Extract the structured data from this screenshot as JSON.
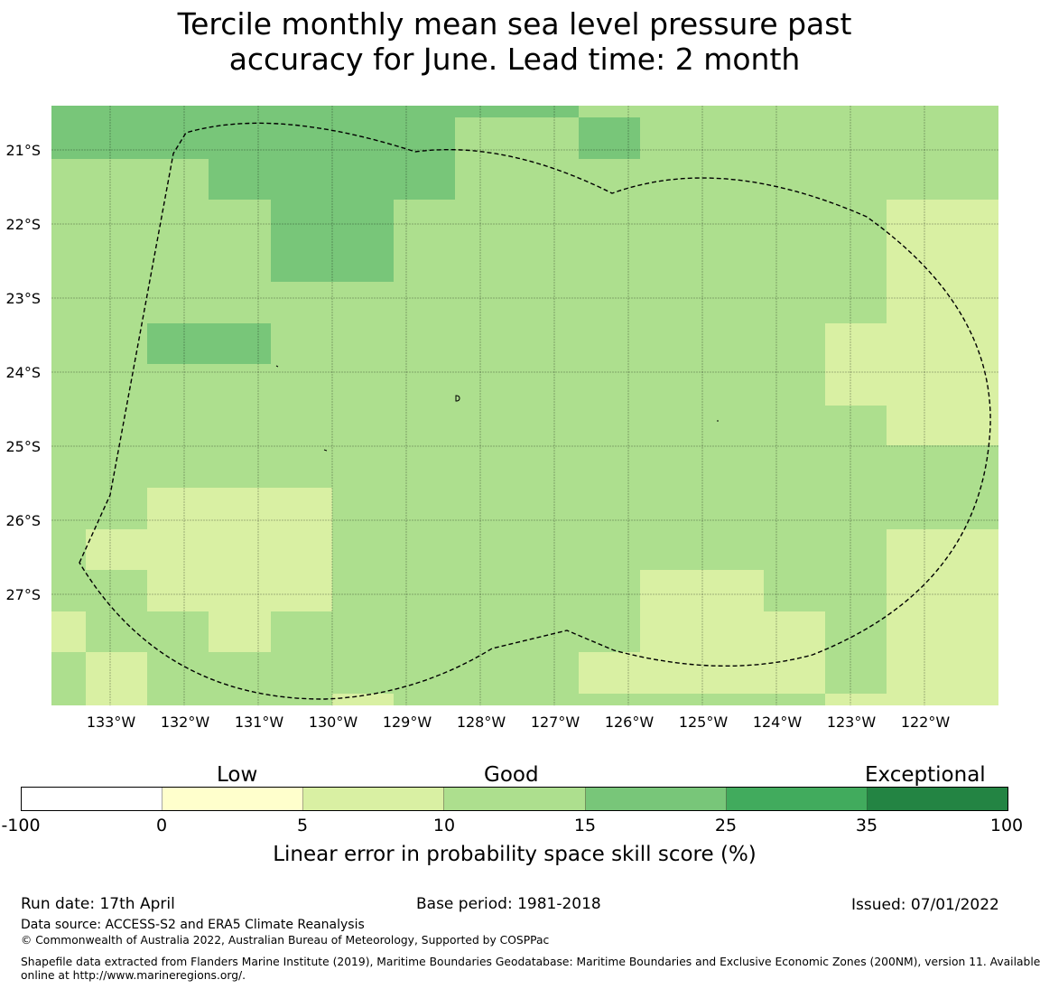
{
  "title": {
    "line1": "Tercile monthly mean sea level pressure past",
    "line2": "accuracy for June. Lead time: 2 month"
  },
  "map": {
    "lat_labels": [
      "21°S",
      "22°S",
      "23°S",
      "24°S",
      "25°S",
      "26°S",
      "27°S"
    ],
    "lon_labels": [
      "133°W",
      "132°W",
      "131°W",
      "130°W",
      "129°W",
      "128°W",
      "127°W",
      "126°W",
      "125°W",
      "124°W",
      "123°W",
      "122°W"
    ],
    "grid": true,
    "boundary_style": "dashed",
    "colors": {
      "c10_15": "#addf8e",
      "c15_25": "#78c679",
      "c5_10": "#d9f0a3"
    }
  },
  "colorbar": {
    "category_labels": [
      "Low",
      "Good",
      "Exceptional"
    ],
    "tick_labels": [
      "-100",
      "0",
      "5",
      "10",
      "15",
      "25",
      "35",
      "100"
    ],
    "colors": [
      "#ffffff",
      "#ffffcc",
      "#d9f0a3",
      "#addf8e",
      "#78c679",
      "#41ab5d",
      "#238443"
    ],
    "label": "Linear error in probability space skill score (%)"
  },
  "footer": {
    "run_date": "Run date: 17th April",
    "base_period": "Base period: 1981-2018",
    "issued": "Issued: 07/01/2022",
    "data_source": "Data source: ACCESS-S2 and ERA5 Climate Reanalysis",
    "copyright": "© Commonwealth of Australia 2022, Australian Bureau of Meteorology, Supported by COSPPac",
    "shapefile_line1": "Shapefile data extracted from Flanders Marine Institute (2019), Maritime Boundaries Geodatabase: Maritime Boundaries and Exclusive Economic Zones (200NM), version 11. Available",
    "shapefile_line2": "online at http://www.marineregions.org/."
  }
}
